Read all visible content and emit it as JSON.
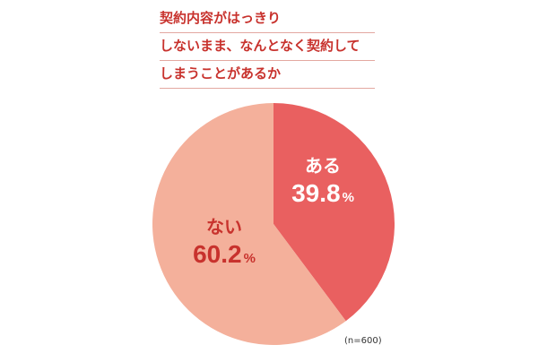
{
  "title_lines": [
    "契約内容がはっきり",
    "しないまま、なんとなく契約して",
    "しまうことがあるか"
  ],
  "note": "(n=600)",
  "chart_data": {
    "type": "pie",
    "slices": [
      {
        "label": "ある",
        "value": 39.8,
        "display": "39.8",
        "unit": "%",
        "color": "#e96060",
        "text_color": "#ffffff"
      },
      {
        "label": "ない",
        "value": 60.2,
        "display": "60.2",
        "unit": "%",
        "color": "#f4b09b",
        "text_color": "#c8322d"
      }
    ],
    "start": "12 o'clock",
    "direction": "clockwise"
  }
}
